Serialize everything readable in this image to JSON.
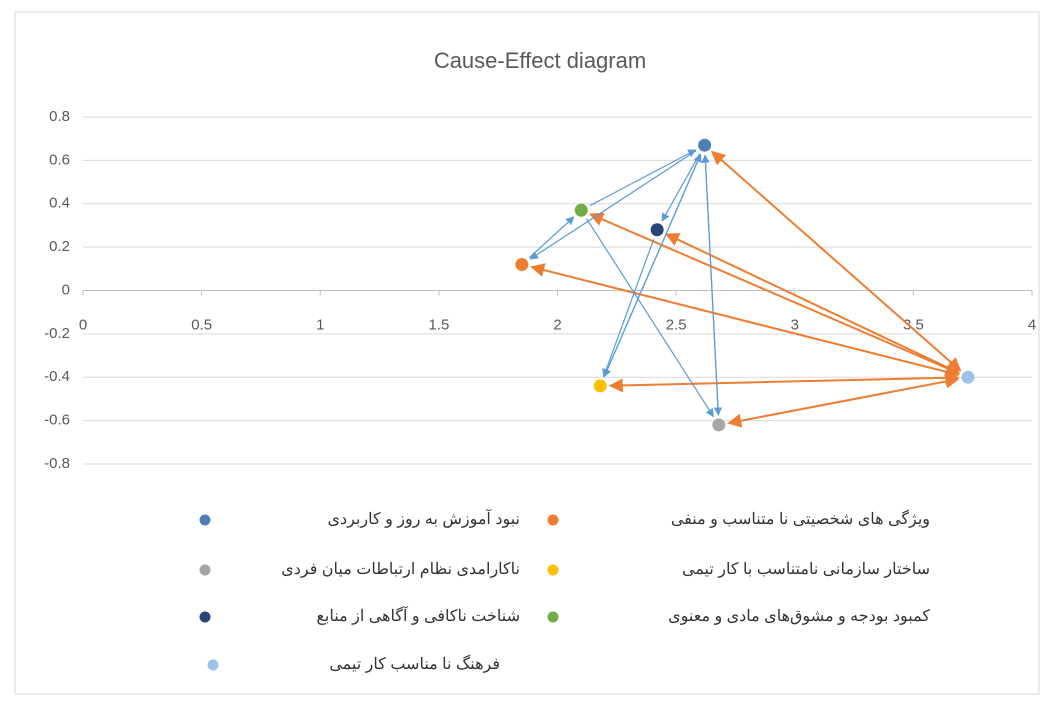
{
  "chart_data": {
    "type": "scatter",
    "title": "Cause-Effect diagram",
    "xlim": [
      0,
      4
    ],
    "xticks": [
      0,
      0.5,
      1,
      1.5,
      2,
      2.5,
      3,
      3.5,
      4
    ],
    "ylim": [
      -0.8,
      0.8
    ],
    "yticks": [
      0.8,
      0.6,
      0.4,
      0.2,
      0,
      -0.2,
      -0.4,
      -0.6,
      -0.8
    ],
    "grid": true,
    "series": [
      {
        "name": "نبود آموزش به روز و کاربردی",
        "color": "#4f7fb5",
        "x": [
          2.62
        ],
        "values": [
          0.67
        ]
      },
      {
        "name": "ویژگی های شخصیتی نا متناسب و منفی",
        "color": "#ed7d31",
        "x": [
          1.85
        ],
        "values": [
          0.12
        ]
      },
      {
        "name": "ناکارامدی نظام ارتباطات میان فردی",
        "color": "#a5a5a5",
        "x": [
          2.68
        ],
        "values": [
          -0.62
        ]
      },
      {
        "name": "ساختار سازمانی نامتناسب با کار تیمی",
        "color": "#ffc000",
        "x": [
          2.18
        ],
        "values": [
          -0.44
        ]
      },
      {
        "name": "شناخت ناکافی و آگاهی از منابع",
        "color": "#264478",
        "x": [
          2.42
        ],
        "values": [
          0.28
        ]
      },
      {
        "name": "کمبود بودجه و مشوق‌های مادی و معنوی",
        "color": "#70ad47",
        "x": [
          2.1
        ],
        "values": [
          0.37
        ]
      },
      {
        "name": "فرهنگ نا مناسب کار تیمی",
        "color": "#9dc3e6",
        "x": [
          3.73
        ],
        "values": [
          -0.4
        ]
      }
    ]
  }
}
